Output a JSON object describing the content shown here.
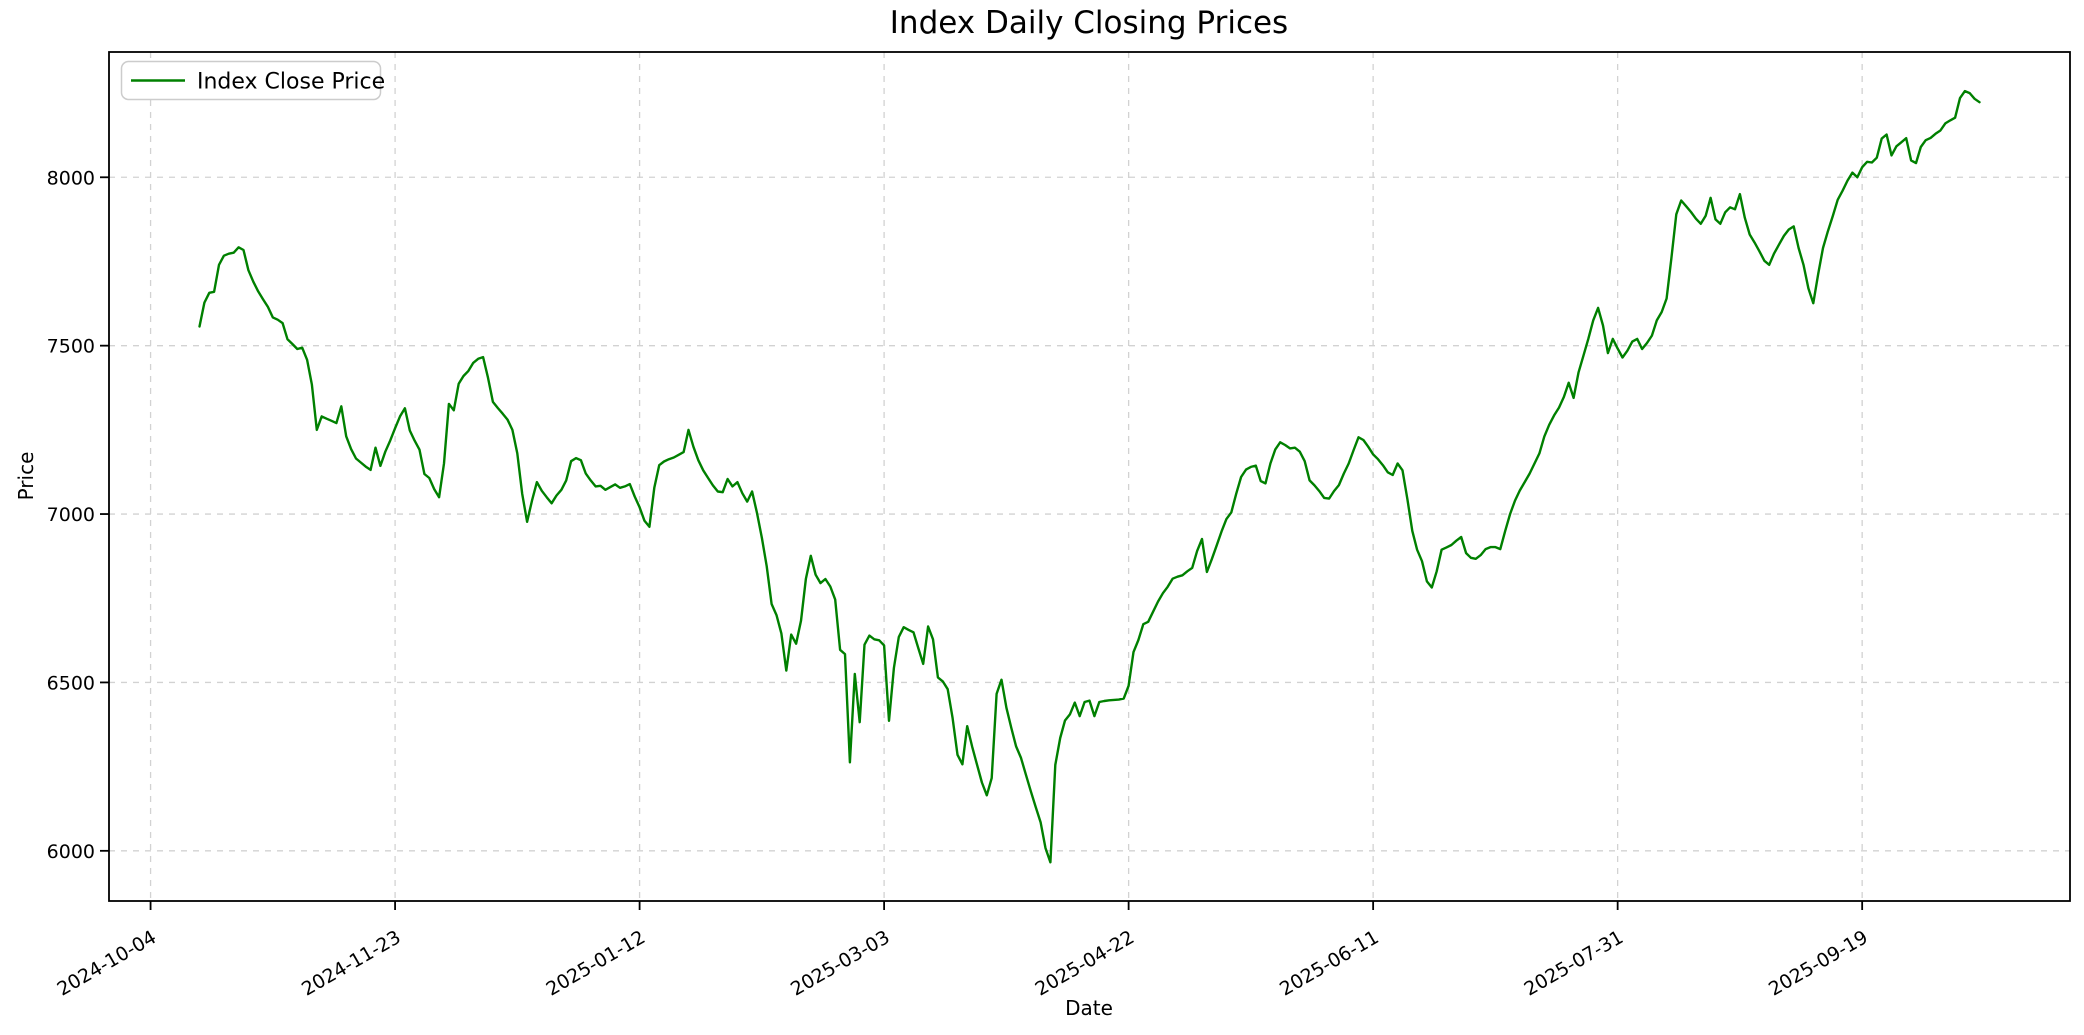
{
  "figure": {
    "background": "#ffffff"
  },
  "chart_data": {
    "type": "line",
    "title": "Index Daily Closing Prices",
    "xlabel": "Date",
    "ylabel": "Price",
    "grid": true,
    "grid_style": "dashed",
    "grid_color": "#d2d2d2",
    "legend_position": "upper-left",
    "x_tick_labels": [
      "2024-10-04",
      "2024-11-23",
      "2025-01-12",
      "2025-03-03",
      "2025-04-22",
      "2025-06-11",
      "2025-07-31",
      "2025-09-19"
    ],
    "y_tick_labels": [
      "6000",
      "6500",
      "7000",
      "7500",
      "8000"
    ],
    "y_ticks": [
      6000,
      6500,
      7000,
      7500,
      8000
    ],
    "xlim": [
      "2024-09-25T12:00:00Z",
      "2025-10-31T12:00:00Z"
    ],
    "ylim": [
      5851,
      8372
    ],
    "series": [
      {
        "name": "Index Close Price",
        "color": "#008000",
        "frequency": "daily",
        "start_date": "2024-10-14",
        "end_date": "2025-10-13",
        "values": [
          7557,
          7628,
          7657,
          7660,
          7740,
          7767,
          7773,
          7776,
          7792,
          7784,
          7724,
          7690,
          7661,
          7638,
          7615,
          7584,
          7577,
          7567,
          7519,
          7505,
          7490,
          7494,
          7458,
          7384,
          7250,
          7290,
          7283,
          7277,
          7270,
          7320,
          7231,
          7193,
          7165,
          7153,
          7141,
          7131,
          7197,
          7143,
          7185,
          7218,
          7255,
          7290,
          7314,
          7248,
          7218,
          7191,
          7119,
          7107,
          7074,
          7050,
          7150,
          7327,
          7308,
          7387,
          7410,
          7425,
          7449,
          7461,
          7466,
          7405,
          7333,
          7315,
          7298,
          7280,
          7250,
          7180,
          7060,
          6977,
          7040,
          7095,
          7069,
          7050,
          7032,
          7055,
          7072,
          7100,
          7157,
          7166,
          7160,
          7120,
          7100,
          7082,
          7084,
          7072,
          7080,
          7088,
          7078,
          7082,
          7089,
          7052,
          7020,
          6980,
          6962,
          7078,
          7145,
          7156,
          7163,
          7168,
          7176,
          7184,
          7250,
          7200,
          7160,
          7130,
          7107,
          7085,
          7067,
          7065,
          7104,
          7082,
          7095,
          7062,
          7037,
          7067,
          7003,
          6929,
          6845,
          6733,
          6700,
          6645,
          6535,
          6642,
          6615,
          6683,
          6808,
          6876,
          6820,
          6795,
          6807,
          6785,
          6746,
          6597,
          6584,
          6263,
          6525,
          6382,
          6612,
          6639,
          6628,
          6625,
          6610,
          6386,
          6543,
          6635,
          6664,
          6656,
          6649,
          6602,
          6555,
          6666,
          6628,
          6515,
          6503,
          6480,
          6394,
          6285,
          6257,
          6370,
          6310,
          6256,
          6203,
          6165,
          6216,
          6466,
          6508,
          6425,
          6365,
          6310,
          6276,
          6226,
          6177,
          6130,
          6085,
          6008,
          5966,
          6255,
          6335,
          6387,
          6405,
          6440,
          6400,
          6442,
          6446,
          6400,
          6442,
          6445,
          6447,
          6448,
          6449,
          6452,
          6490,
          6590,
          6626,
          6673,
          6680,
          6710,
          6740,
          6765,
          6784,
          6808,
          6814,
          6818,
          6830,
          6840,
          6890,
          6926,
          6828,
          6866,
          6906,
          6948,
          6985,
          7005,
          7060,
          7110,
          7132,
          7140,
          7144,
          7098,
          7091,
          7150,
          7192,
          7213,
          7205,
          7195,
          7197,
          7185,
          7157,
          7100,
          7085,
          7068,
          7048,
          7046,
          7068,
          7086,
          7120,
          7150,
          7190,
          7228,
          7220,
          7200,
          7177,
          7163,
          7145,
          7124,
          7116,
          7150,
          7130,
          7044,
          6950,
          6894,
          6860,
          6800,
          6782,
          6830,
          6894,
          6901,
          6908,
          6921,
          6932,
          6884,
          6870,
          6867,
          6878,
          6896,
          6902,
          6902,
          6896,
          6950,
          7000,
          7040,
          7070,
          7095,
          7120,
          7150,
          7180,
          7230,
          7265,
          7293,
          7316,
          7348,
          7390,
          7345,
          7420,
          7470,
          7520,
          7575,
          7612,
          7560,
          7478,
          7520,
          7492,
          7465,
          7485,
          7512,
          7520,
          7490,
          7508,
          7530,
          7575,
          7600,
          7640,
          7760,
          7890,
          7931,
          7914,
          7897,
          7877,
          7862,
          7886,
          7939,
          7875,
          7862,
          7896,
          7911,
          7905,
          7950,
          7880,
          7830,
          7806,
          7780,
          7752,
          7740,
          7774,
          7800,
          7826,
          7845,
          7854,
          7790,
          7740,
          7670,
          7626,
          7713,
          7790,
          7840,
          7885,
          7933,
          7960,
          7990,
          8014,
          8000,
          8030,
          8046,
          8044,
          8058,
          8115,
          8127,
          8065,
          8092,
          8104,
          8116,
          8050,
          8042,
          8090,
          8110,
          8117,
          8129,
          8139,
          8160,
          8169,
          8177,
          8235,
          8256,
          8250,
          8233,
          8223
        ]
      }
    ]
  }
}
